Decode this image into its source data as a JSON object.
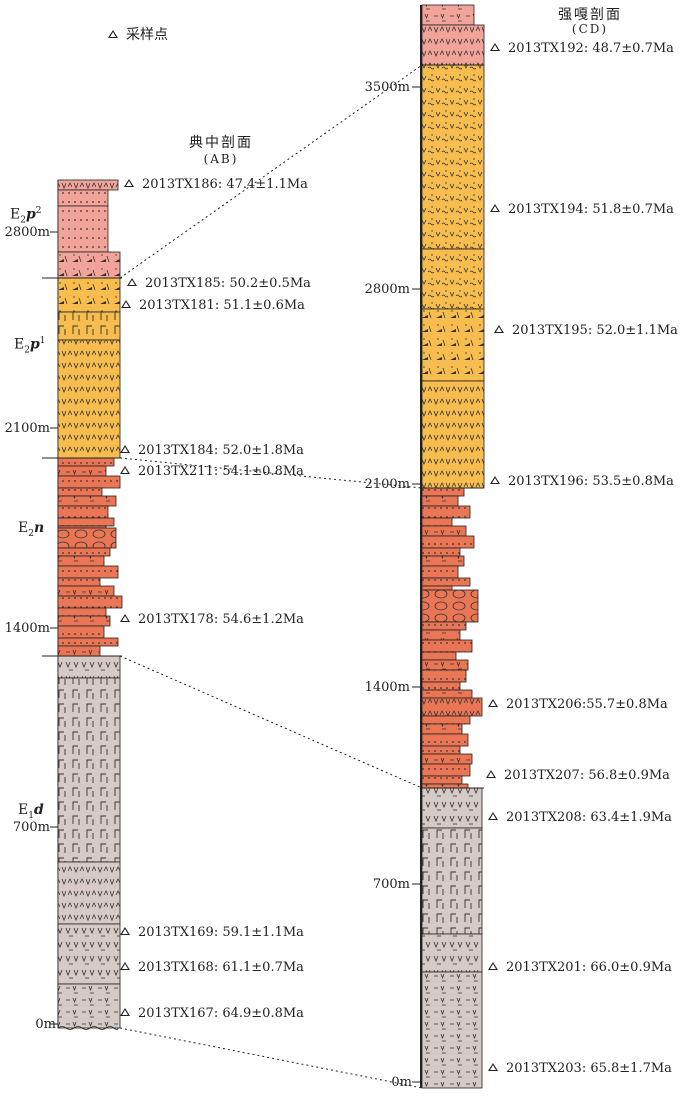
{
  "legend": {
    "label": "采样点"
  },
  "colors": {
    "pink": "#f2a49a",
    "orange": "#f7bd4f",
    "red": "#ea7655",
    "gray": "#d5cac6",
    "line": "#222222"
  },
  "section_ab": {
    "title": "典中剖面",
    "code": "(AB)",
    "units": [
      {
        "base": "E",
        "sub": "2",
        "main": "p",
        "sup": "2"
      },
      {
        "base": "E",
        "sub": "2",
        "main": "p",
        "sup": "1"
      },
      {
        "base": "E",
        "sub": "2",
        "main": "n",
        "sup": ""
      },
      {
        "base": "E",
        "sub": "1",
        "main": "d",
        "sup": ""
      }
    ],
    "depths": [
      "2800m",
      "2100m",
      "1400m",
      "700m",
      "0m"
    ],
    "samples": [
      "2013TX186: 47.4±1.1Ma",
      "2013TX185: 50.2±0.5Ma",
      "2013TX181: 51.1±0.6Ma",
      "2013TX184: 52.0±1.8Ma",
      "2013TX211: 54.1±0.8Ma",
      "2013TX178: 54.6±1.2Ma",
      "2013TX169: 59.1±1.1Ma",
      "2013TX168: 61.1±0.7Ma",
      "2013TX167: 64.9±0.8Ma"
    ]
  },
  "section_cd": {
    "title": "强嘎剖面",
    "code": "(CD)",
    "depths": [
      "3500m",
      "2800m",
      "2100m",
      "1400m",
      "700m",
      "0m"
    ],
    "samples": [
      "2013TX192: 48.7±0.7Ma",
      "2013TX194: 51.8±0.7Ma",
      "2013TX195: 52.0±1.1Ma",
      "2013TX196: 53.5±0.8Ma",
      "2013TX206:55.7±0.8Ma",
      "2013TX207: 56.8±0.9Ma",
      "2013TX208: 63.4±1.9Ma",
      "2013TX201: 66.0±0.9Ma",
      "2013TX203: 65.8±1.7Ma"
    ]
  }
}
